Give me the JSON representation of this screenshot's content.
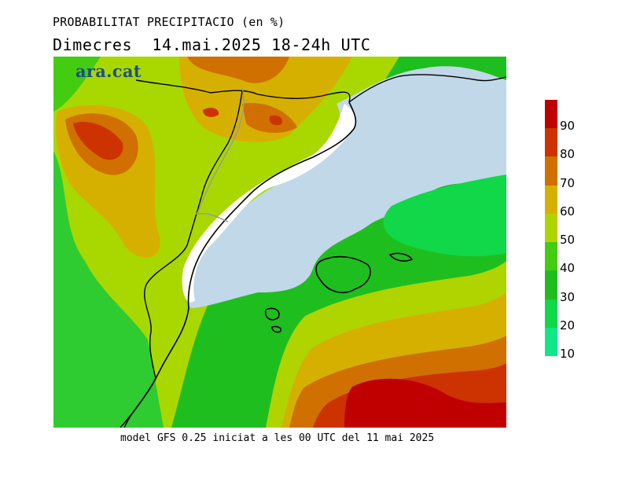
{
  "header": {
    "title": "PROBABILITAT PRECIPITACIO (en %)",
    "subtitle": "Dimecres  14.mai.2025 18-24h UTC"
  },
  "map": {
    "logo": "ara.cat",
    "sea_color": "#c0d8e8",
    "land_base_color": "#a8d800"
  },
  "footer": {
    "text": "model GFS 0.25 iniciat a les 00 UTC del 11 mai 2025"
  },
  "legend": {
    "unit": "%",
    "levels": [
      {
        "label": "90",
        "color": "#c00000"
      },
      {
        "label": "80",
        "color": "#cc3300"
      },
      {
        "label": "70",
        "color": "#d07000"
      },
      {
        "label": "60",
        "color": "#d6b000"
      },
      {
        "label": "50",
        "color": "#b0d400"
      },
      {
        "label": "40",
        "color": "#44cc10"
      },
      {
        "label": "30",
        "color": "#1fbe1f"
      },
      {
        "label": "20",
        "color": "#10d848"
      },
      {
        "label": "10",
        "color": "#10e888"
      }
    ]
  }
}
